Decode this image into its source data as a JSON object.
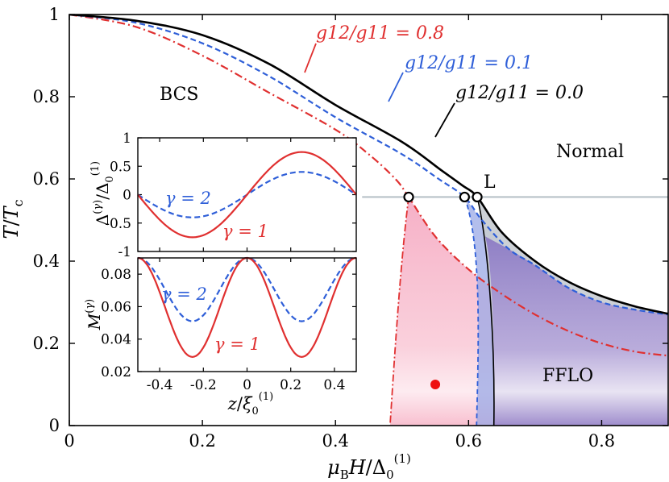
{
  "chart_data": [
    {
      "type": "line",
      "title": "",
      "xlabel": "μB H / Δ0(1)",
      "ylabel": "T / Tc",
      "xlim": [
        0,
        0.9
      ],
      "ylim": [
        0,
        1
      ],
      "xticks": [
        "0",
        "0.2",
        "0.4",
        "0.6",
        "0.8"
      ],
      "yticks": [
        "0",
        "0.2",
        "0.4",
        "0.6",
        "0.8",
        "1"
      ],
      "region_labels": [
        "BCS",
        "Normal",
        "FFLO"
      ],
      "lifshitz_label": "L",
      "series": [
        {
          "name": "g12/g11 = 0.0",
          "color": "#000000",
          "style": "solid",
          "points": [
            [
              0,
              1
            ],
            [
              0.1,
              0.985
            ],
            [
              0.2,
              0.95
            ],
            [
              0.3,
              0.88
            ],
            [
              0.4,
              0.78
            ],
            [
              0.5,
              0.69
            ],
            [
              0.56,
              0.62
            ],
            [
              0.59,
              0.585
            ],
            [
              0.613,
              0.556
            ],
            [
              0.65,
              0.47
            ],
            [
              0.7,
              0.4
            ],
            [
              0.75,
              0.35
            ],
            [
              0.8,
              0.315
            ],
            [
              0.85,
              0.29
            ],
            [
              0.9,
              0.272
            ]
          ]
        },
        {
          "name": "g12/g11 = 0.1",
          "color": "#2f5fd8",
          "style": "dashed",
          "points": [
            [
              0,
              1
            ],
            [
              0.1,
              0.98
            ],
            [
              0.2,
              0.93
            ],
            [
              0.3,
              0.85
            ],
            [
              0.4,
              0.75
            ],
            [
              0.5,
              0.66
            ],
            [
              0.555,
              0.6
            ],
            [
              0.594,
              0.556
            ],
            [
              0.62,
              0.5
            ],
            [
              0.66,
              0.43
            ],
            [
              0.7,
              0.39
            ],
            [
              0.75,
              0.335
            ],
            [
              0.8,
              0.3
            ],
            [
              0.85,
              0.282
            ],
            [
              0.9,
              0.27
            ]
          ]
        },
        {
          "name": "g12/g11 = 0.8",
          "color": "#e03030",
          "style": "dashdot",
          "points": [
            [
              0,
              1
            ],
            [
              0.1,
              0.97
            ],
            [
              0.2,
              0.9
            ],
            [
              0.3,
              0.81
            ],
            [
              0.4,
              0.72
            ],
            [
              0.45,
              0.66
            ],
            [
              0.49,
              0.6
            ],
            [
              0.51,
              0.556
            ],
            [
              0.55,
              0.46
            ],
            [
              0.6,
              0.38
            ],
            [
              0.65,
              0.32
            ],
            [
              0.7,
              0.27
            ],
            [
              0.75,
              0.23
            ],
            [
              0.8,
              0.2
            ],
            [
              0.85,
              0.18
            ],
            [
              0.9,
              0.17
            ]
          ]
        }
      ],
      "lifshitz_points": [
        [
          0.51,
          0.556
        ],
        [
          0.594,
          0.556
        ],
        [
          0.613,
          0.556
        ]
      ],
      "reference_line_y": 0.556,
      "marker_point": [
        0.55,
        0.1
      ]
    },
    {
      "type": "line",
      "xlabel": "",
      "ylabel": "Δ(γ) / Δ0(1)",
      "xlim": [
        -0.5,
        0.5
      ],
      "ylim": [
        -1,
        1
      ],
      "yticks": [
        "1",
        "0.5",
        "0",
        "-0.5",
        "-1"
      ],
      "series": [
        {
          "name": "γ = 1",
          "color": "#e03030",
          "style": "solid",
          "amplitude": 0.75,
          "period": 1.0
        },
        {
          "name": "γ = 2",
          "color": "#2f5fd8",
          "style": "dashed",
          "amplitude": 0.4,
          "period": 1.0
        }
      ]
    },
    {
      "type": "line",
      "xlabel": "z / ξ0(1)",
      "ylabel": "M(γ)",
      "xlim": [
        -0.5,
        0.5
      ],
      "ylim": [
        0.02,
        0.09
      ],
      "xticks": [
        "-0.4",
        "-0.2",
        "0",
        "0.2",
        "0.4"
      ],
      "yticks": [
        "0.08",
        "0.06",
        "0.04",
        "0.02"
      ],
      "series": [
        {
          "name": "γ = 1",
          "color": "#e03030",
          "style": "solid",
          "mean": 0.0595,
          "amp": 0.0305
        },
        {
          "name": "γ = 2",
          "color": "#2f5fd8",
          "style": "dashed",
          "mean": 0.0705,
          "amp": 0.0195
        }
      ]
    }
  ],
  "labels": {
    "curve0": "g12/g11 = 0.0",
    "curve1": "g12/g11 = 0.1",
    "curve8": "g12/g11 = 0.8",
    "bcs": "BCS",
    "normal": "Normal",
    "fflo": "FFLO",
    "L": "L",
    "g1": "γ = 1",
    "g2": "γ = 2"
  }
}
